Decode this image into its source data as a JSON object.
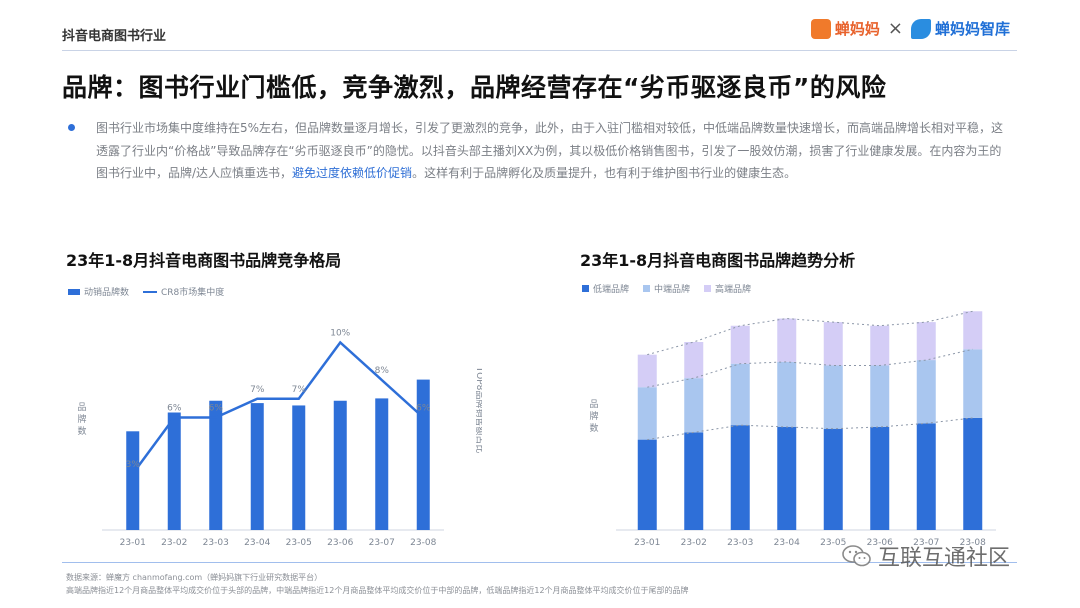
{
  "header": {
    "section_tag": "抖音电商图书行业",
    "brand_left": "蝉妈妈",
    "brand_sep": "×",
    "brand_right": "蝉妈妈智库"
  },
  "headline": "品牌：图书行业门槛低，竞争激烈，品牌经营存在“劣币驱逐良币”的风险",
  "body": {
    "text_before": "图书行业市场集中度维持在5%左右，但品牌数量逐月增长，引发了更激烈的竞争，此外，由于入驻门槛相对较低，中低端品牌数量快速增长，而高端品牌增长相对平稳，这透露了行业内“价格战”导致品牌存在“劣币驱逐良币”的隐忧。以抖音头部主播刘XX为例，其以极低价格销售图书，引发了一股效仿潮，损害了行业健康发展。在内容为王的图书行业中，品牌/达人应慎重选书，",
    "highlight": "避免过度依赖低价促销",
    "text_after": "。这样有利于品牌孵化及质量提升，也有利于维护图书行业的健康生态。"
  },
  "colors": {
    "dark_blue": "#2e6fd8",
    "mid_blue": "#a9c6ef",
    "lavender": "#d4cdf6",
    "text_gray": "#7b7f86"
  },
  "chart_data": [
    {
      "type": "bar",
      "title": "23年1-8月抖音电商图书品牌竞争格局",
      "categories": [
        "23-01",
        "23-02",
        "23-03",
        "23-04",
        "23-05",
        "23-06",
        "23-07",
        "23-08"
      ],
      "series": [
        {
          "name": "动销品牌数",
          "type": "bar",
          "values": [
            42,
            50,
            55,
            54,
            53,
            55,
            56,
            64
          ]
        },
        {
          "name": "CR8市场集中度",
          "type": "line",
          "values": [
            3,
            6,
            6,
            7,
            7,
            10,
            8,
            6
          ],
          "labels": [
            "3%",
            "6%",
            "6%",
            "7%",
            "7%",
            "10%",
            "8%",
            "6%"
          ]
        }
      ],
      "ylabel": "品牌数",
      "y2label": "TOP8品牌销售额占比",
      "ylim": [
        0,
        100
      ],
      "y2lim": [
        0,
        12
      ],
      "legend": "top-left",
      "grid": false
    },
    {
      "type": "bar",
      "stacked": true,
      "title": "23年1-8月抖音电商图书品牌趋势分析",
      "categories": [
        "23-01",
        "23-02",
        "23-03",
        "23-04",
        "23-05",
        "23-06",
        "23-07",
        "23-08"
      ],
      "series": [
        {
          "name": "低端品牌",
          "values": [
            50,
            54,
            58,
            57,
            56,
            57,
            59,
            62
          ]
        },
        {
          "name": "中端品牌",
          "values": [
            29,
            30,
            34,
            36,
            35,
            34,
            35,
            38
          ]
        },
        {
          "name": "高端品牌",
          "values": [
            18,
            20,
            21,
            24,
            24,
            22,
            21,
            21
          ]
        }
      ],
      "ylabel": "品牌数",
      "ylim": [
        0,
        130
      ],
      "legend": "top-left",
      "grid": false
    }
  ],
  "footer": {
    "source": "数据来源：蝉魔方 chanmofang.com（蝉妈妈旗下行业研究数据平台）",
    "note": "高端品牌指近12个月商品整体平均成交价位于头部的品牌，中端品牌指近12个月商品整体平均成交价位于中部的品牌，低端品牌指近12个月商品整体平均成交价位于尾部的品牌"
  },
  "watermark": "互联互通社区"
}
